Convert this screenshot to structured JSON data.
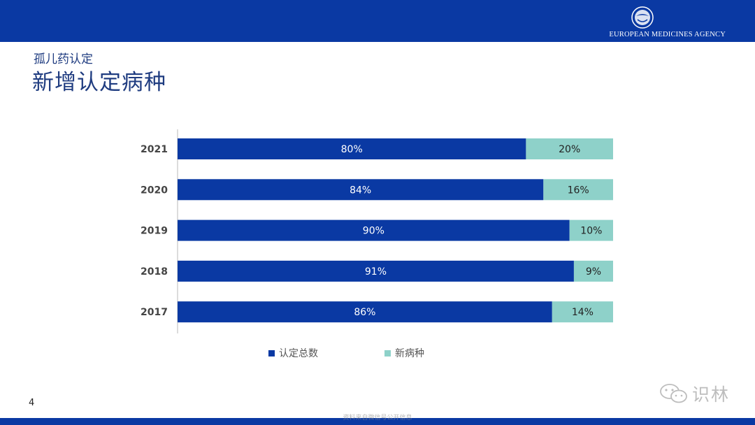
{
  "header": {
    "logo_text": "EUROPEAN MEDICINES AGENCY"
  },
  "slide": {
    "subtitle": "孤儿药认定",
    "title": "新增认定病种",
    "page_number": "4"
  },
  "watermark": {
    "text": "识林",
    "icon": "wechat-icon"
  },
  "footer": {
    "text": "资料来自微信号公开信息"
  },
  "colors": {
    "brand_blue": "#0a39a3",
    "series_1": "#0a39a3",
    "series_2": "#8ed1c9"
  },
  "chart_data": {
    "type": "bar",
    "orientation": "horizontal",
    "stacked": true,
    "title": "",
    "xlabel": "",
    "ylabel": "",
    "categories": [
      "2021",
      "2020",
      "2019",
      "2018",
      "2017"
    ],
    "series": [
      {
        "name": "认定总数",
        "values": [
          80,
          84,
          90,
          91,
          86
        ],
        "labels": [
          "80%",
          "84%",
          "90%",
          "91%",
          "86%"
        ],
        "color": "#0a39a3"
      },
      {
        "name": "新病种",
        "values": [
          20,
          16,
          10,
          9,
          14
        ],
        "labels": [
          "20%",
          "16%",
          "10%",
          "9%",
          "14%"
        ],
        "color": "#8ed1c9"
      }
    ],
    "xlim": [
      0,
      100
    ],
    "grid": false,
    "legend": "bottom"
  }
}
